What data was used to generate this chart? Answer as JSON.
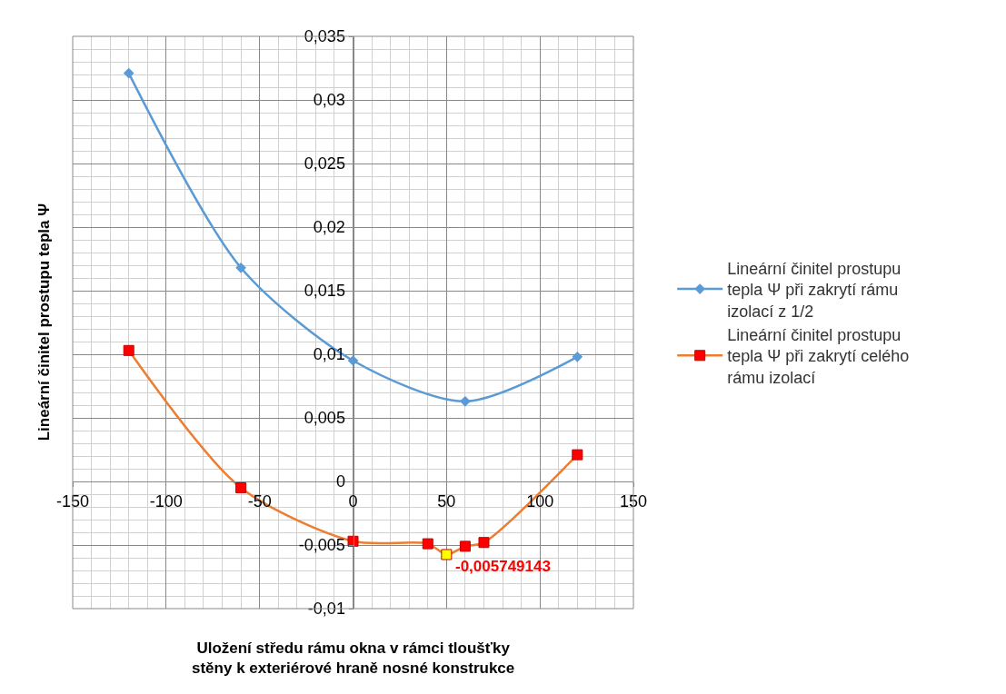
{
  "chart_data": {
    "type": "line",
    "xlabel": "Uložení středu rámu okna v rámci tloušťky\nstěny k exteriérové hraně nosné konstrukce",
    "ylabel": "Lineární činitel prostupu tepla Ψ",
    "x": [
      -120,
      -60,
      0,
      60,
      120
    ],
    "series": [
      {
        "name": "Lineární činitel prostupu tepla Ψ při zakrytí rámu izolací z 1/2",
        "color": "#5b9bd5",
        "marker": "diamond",
        "values": [
          0.0321,
          0.0168,
          0.0095,
          0.0063,
          0.0098
        ]
      },
      {
        "name": "Lineární činitel prostupu tepla Ψ při zakrytí celého rámu izolací",
        "color": "#ed7d31",
        "marker": "square",
        "x": [
          -120,
          -60,
          0,
          40,
          50,
          60,
          70,
          120
        ],
        "values": [
          0.0103,
          -0.0005,
          -0.0047,
          -0.0049,
          -0.005749143,
          -0.0051,
          -0.0048,
          0.0021
        ],
        "colors": [
          "#ff0000",
          "#ff0000",
          "#ff0000",
          "#ff0000",
          "#ffff00",
          "#ff0000",
          "#ff0000",
          "#ff0000"
        ],
        "value_labels": [
          null,
          null,
          null,
          null,
          "-0,005749143",
          null,
          null,
          null
        ]
      }
    ],
    "xlim": [
      -150,
      150
    ],
    "xticks": [
      -150,
      -100,
      -50,
      0,
      50,
      100,
      150
    ],
    "ylim": [
      -0.01,
      0.035
    ],
    "yticks": [
      {
        "value": -0.01,
        "label": "-0,01"
      },
      {
        "value": -0.005,
        "label": "-0,005"
      },
      {
        "value": 0,
        "label": "0"
      },
      {
        "value": 0.005,
        "label": "0,005"
      },
      {
        "value": 0.01,
        "label": "0,01"
      },
      {
        "value": 0.015,
        "label": "0,015"
      },
      {
        "value": 0.02,
        "label": "0,02"
      },
      {
        "value": 0.025,
        "label": "0,025"
      },
      {
        "value": 0.03,
        "label": "0,03"
      },
      {
        "value": 0.035,
        "label": "0,035"
      }
    ],
    "grid": true,
    "legend": "right",
    "line_style": "solid"
  }
}
